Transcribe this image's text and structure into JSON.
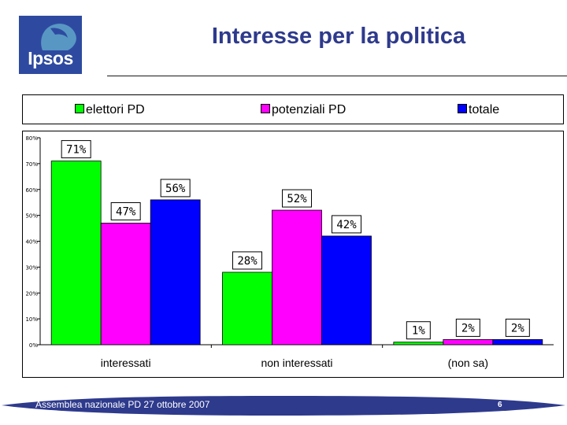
{
  "logo": {
    "text": "Ipsos"
  },
  "title": "Interesse per la politica",
  "footer": {
    "text": "Assemblea nazionale PD 27 ottobre 2007",
    "page": "6"
  },
  "colors": {
    "title": "#2e3a8c",
    "logo_bg": "#2e4aa0",
    "footer_band": "#2e3a8c"
  },
  "chart_data": {
    "type": "bar",
    "title": "",
    "xlabel": "",
    "ylabel": "",
    "categories": [
      "interessati",
      "non interessati",
      "(non sa)"
    ],
    "series": [
      {
        "name": "elettori PD",
        "color": "#00ff00",
        "values": [
          71,
          28,
          1
        ],
        "labels": [
          "71%",
          "28%",
          "1%"
        ]
      },
      {
        "name": "potenziali PD",
        "color": "#ff00ff",
        "values": [
          47,
          52,
          2
        ],
        "labels": [
          "47%",
          "52%",
          "2%"
        ]
      },
      {
        "name": "totale",
        "color": "#0000ff",
        "values": [
          56,
          42,
          2
        ],
        "labels": [
          "56%",
          "42%",
          "2%"
        ]
      }
    ],
    "ylim": [
      0,
      80
    ],
    "yticks": [
      "0%",
      "10%",
      "20%",
      "30%",
      "40%",
      "50%",
      "60%",
      "70%",
      "80%"
    ],
    "grid": false,
    "legend": "top"
  }
}
